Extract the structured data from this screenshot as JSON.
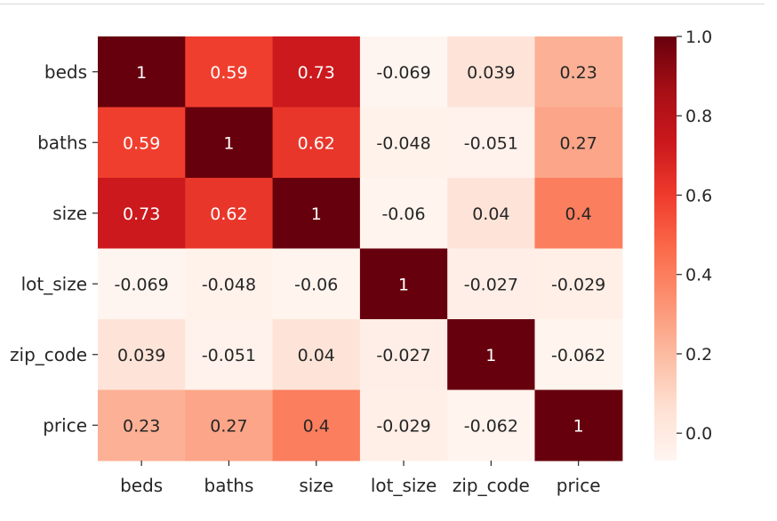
{
  "chart_data": {
    "type": "heatmap",
    "labels": [
      "beds",
      "baths",
      "size",
      "lot_size",
      "zip_code",
      "price"
    ],
    "matrix": [
      [
        1,
        0.59,
        0.73,
        -0.069,
        0.039,
        0.23
      ],
      [
        0.59,
        1,
        0.62,
        -0.048,
        -0.051,
        0.27
      ],
      [
        0.73,
        0.62,
        1,
        -0.06,
        0.04,
        0.4
      ],
      [
        -0.069,
        -0.048,
        -0.06,
        1,
        -0.027,
        -0.029
      ],
      [
        0.039,
        -0.051,
        0.04,
        -0.027,
        1,
        -0.062
      ],
      [
        0.23,
        0.27,
        0.4,
        -0.029,
        -0.062,
        1
      ]
    ],
    "annotations": [
      [
        "1",
        "0.59",
        "0.73",
        "-0.069",
        "0.039",
        "0.23"
      ],
      [
        "0.59",
        "1",
        "0.62",
        "-0.048",
        "-0.051",
        "0.27"
      ],
      [
        "0.73",
        "0.62",
        "1",
        "-0.06",
        "0.04",
        "0.4"
      ],
      [
        "-0.069",
        "-0.048",
        "-0.06",
        "1",
        "-0.027",
        "-0.029"
      ],
      [
        "0.039",
        "-0.051",
        "0.04",
        "-0.027",
        "1",
        "-0.062"
      ],
      [
        "0.23",
        "0.27",
        "0.4",
        "-0.029",
        "-0.062",
        "1"
      ]
    ],
    "colormap": "Reds",
    "color_range": [
      -0.069,
      1
    ],
    "colorbar": {
      "ticks": [
        0.0,
        0.2,
        0.4,
        0.6,
        0.8,
        1.0
      ],
      "tick_labels": [
        "0.0",
        "0.2",
        "0.4",
        "0.6",
        "0.8",
        "1.0"
      ]
    },
    "title": "",
    "xlabel": "",
    "ylabel": ""
  }
}
